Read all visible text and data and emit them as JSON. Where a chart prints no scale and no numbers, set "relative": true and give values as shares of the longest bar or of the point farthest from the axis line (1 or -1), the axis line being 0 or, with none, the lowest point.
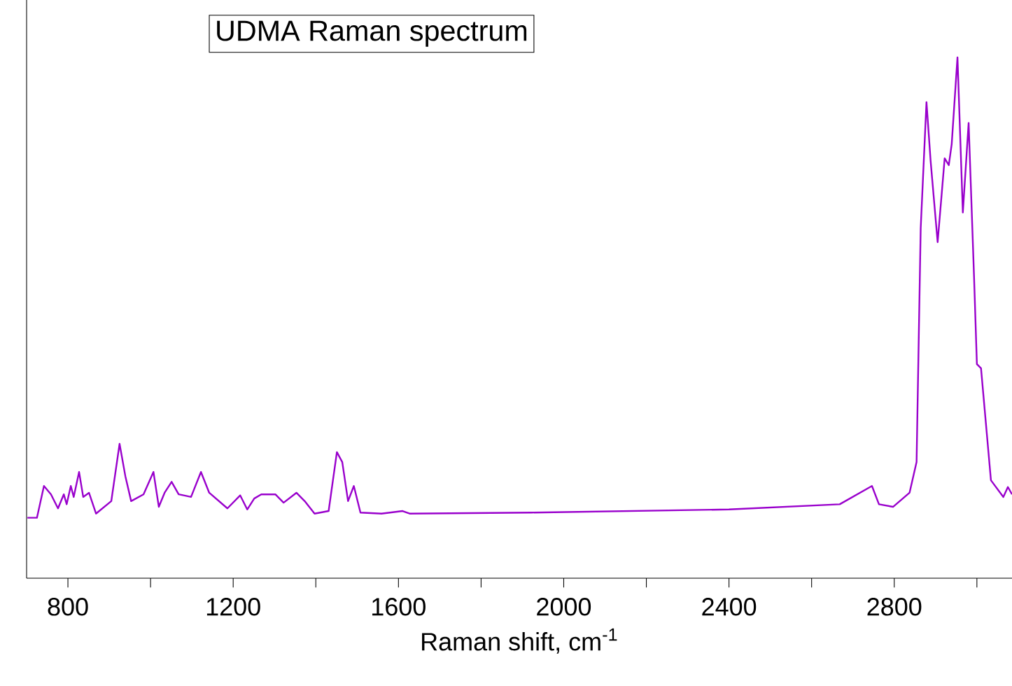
{
  "chart_data": {
    "type": "line",
    "title": "UDMA Raman spectrum",
    "xlabel": "Raman shift, cm$^{-1}$",
    "relative": true,
    "xlim": [
      700,
      3085
    ],
    "xticks": [
      800,
      {
        "value": 1000,
        "label": null
      },
      1200,
      {
        "value": 1400,
        "label": null
      },
      1600,
      {
        "value": 1800,
        "label": null
      },
      2000,
      {
        "value": 2200,
        "label": null
      },
      2400,
      {
        "value": 2600,
        "label": null
      },
      2800,
      {
        "value": 3000,
        "label": null
      }
    ],
    "grid": false,
    "legend": false,
    "marker": "none",
    "line_style": "solid",
    "series": [
      {
        "color": "#9900cc",
        "x": [
          702,
          725,
          742,
          759,
          776,
          790,
          797,
          807,
          814,
          827,
          837,
          851,
          868,
          905,
          925,
          939,
          953,
          983,
          1007,
          1020,
          1034,
          1051,
          1068,
          1098,
          1122,
          1142,
          1186,
          1217,
          1234,
          1251,
          1268,
          1302,
          1322,
          1353,
          1373,
          1397,
          1431,
          1451,
          1464,
          1478,
          1492,
          1508,
          1559,
          1610,
          1627,
          1922,
          2400,
          2668,
          2746,
          2763,
          2797,
          2837,
          2854,
          2864,
          2878,
          2888,
          2905,
          2922,
          2932,
          2939,
          2953,
          2966,
          2980,
          2993,
          3000,
          3010,
          3034,
          3064,
          3075,
          3085
        ],
        "values": [
          0.116,
          0.116,
          0.177,
          0.161,
          0.134,
          0.161,
          0.142,
          0.177,
          0.156,
          0.204,
          0.156,
          0.164,
          0.124,
          0.148,
          0.258,
          0.196,
          0.148,
          0.161,
          0.204,
          0.137,
          0.164,
          0.185,
          0.161,
          0.156,
          0.204,
          0.164,
          0.134,
          0.159,
          0.132,
          0.153,
          0.161,
          0.161,
          0.145,
          0.164,
          0.148,
          0.124,
          0.129,
          0.242,
          0.223,
          0.148,
          0.177,
          0.126,
          0.124,
          0.129,
          0.124,
          0.126,
          0.132,
          0.142,
          0.177,
          0.142,
          0.137,
          0.164,
          0.223,
          0.672,
          0.914,
          0.801,
          0.645,
          0.806,
          0.793,
          0.833,
          1,
          0.702,
          0.874,
          0.581,
          0.411,
          0.403,
          0.188,
          0.156,
          0.175,
          0.161
        ]
      }
    ]
  }
}
